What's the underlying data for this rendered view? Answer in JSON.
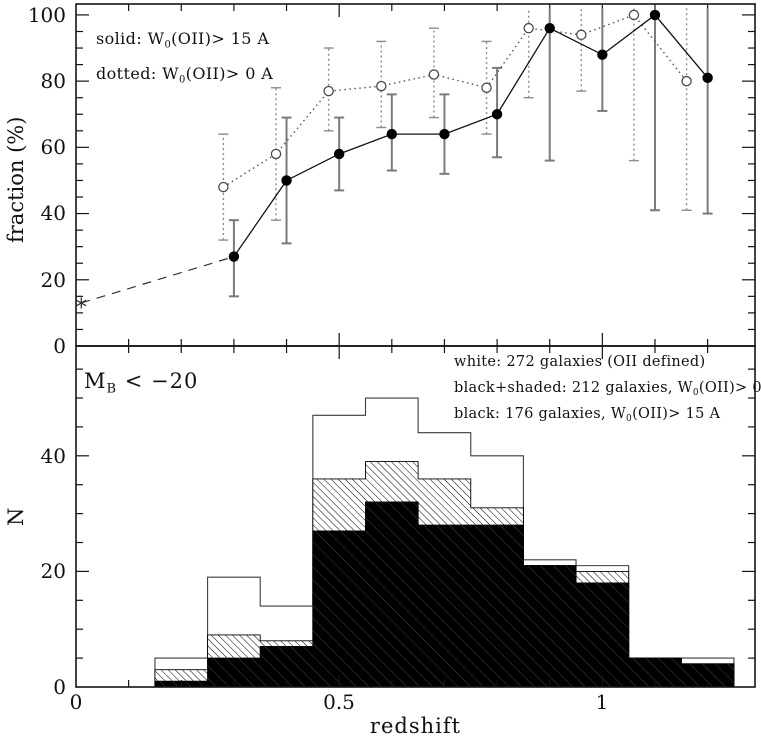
{
  "figure": {
    "background": "#ffffff",
    "ink": "#111111",
    "errorbar_solid_color": "#7a7a7a",
    "errorbar_dotted_color": "#8c8c8c",
    "dotted_line_color": "#555555"
  },
  "chart_data": [
    {
      "type": "line",
      "panel": "top",
      "title": "",
      "ylabel": "fraction (%)",
      "xlabel": "",
      "xlim": [
        0,
        1.29
      ],
      "ylim": [
        0,
        103.3
      ],
      "xticks": [
        0.5,
        1
      ],
      "xminor_step": 0.1,
      "yticks": [
        20,
        40,
        60,
        80,
        100
      ],
      "yminor_step": 5,
      "ytick_labels": [
        "100",
        "80",
        "60",
        "40",
        "20",
        "0"
      ],
      "grid": false,
      "legend_position": "top-left",
      "legend_solid": {
        "pre": "solid: W",
        "sub": "0",
        "post": "(OII)> 15 A"
      },
      "legend_dotted": {
        "pre": "dotted: W",
        "sub": "0",
        "post": "(OII)> 0 A"
      },
      "series": [
        {
          "name": "solid: W0(OII)> 15 A",
          "style": "solid",
          "marker": "filled-circle",
          "x": [
            0.3,
            0.4,
            0.5,
            0.6,
            0.7,
            0.8,
            0.9,
            1.0,
            1.1,
            1.2
          ],
          "y": [
            27,
            50,
            58,
            64,
            64,
            70,
            96,
            88,
            100,
            81
          ],
          "err_lo": [
            15,
            31,
            47,
            53,
            52,
            57,
            56,
            71,
            41,
            40
          ],
          "err_hi": [
            38,
            69,
            69,
            76,
            76,
            84,
            102,
            102,
            102,
            102
          ]
        },
        {
          "name": "dotted: W0(OII)> 0 A",
          "style": "dotted",
          "marker": "open-circle",
          "x": [
            0.28,
            0.38,
            0.48,
            0.58,
            0.68,
            0.78,
            0.86,
            0.96,
            1.06,
            1.16
          ],
          "y": [
            48,
            58,
            77,
            78.5,
            82,
            78,
            96,
            94,
            100,
            80
          ],
          "err_lo": [
            32,
            38,
            65,
            66,
            69,
            64,
            75,
            77,
            56,
            41
          ],
          "err_hi": [
            64,
            78,
            90,
            92,
            96,
            92,
            102,
            102,
            102,
            102
          ]
        },
        {
          "name": "local reference point",
          "style": "dashed-connector",
          "marker": "asterisk",
          "x": [
            0.01
          ],
          "y": [
            13
          ],
          "connect_to": [
            0.3,
            27
          ]
        }
      ]
    },
    {
      "type": "bar",
      "subtype": "stepped-histogram",
      "panel": "bottom",
      "title": "",
      "ylabel": "N",
      "xlabel": "redshift",
      "xlim": [
        0,
        1.29
      ],
      "ylim": [
        0,
        59
      ],
      "xticks": [
        0.5,
        1
      ],
      "xtick_labels": [
        "0",
        "0.5",
        "1"
      ],
      "xminor_step": 0.1,
      "yticks": [
        20,
        40
      ],
      "yminor_step": 5,
      "ytick_labels": [
        "40",
        "20",
        "0"
      ],
      "annotation": {
        "pre": "M",
        "sub": "B",
        "post": " < −20"
      },
      "legend": [
        {
          "pre": "white: 272 galaxies (OII defined)",
          "sub": "",
          "post": ""
        },
        {
          "pre": "black+shaded: 212 galaxies, W",
          "sub": "0",
          "post": "(OII)> 0"
        },
        {
          "pre": "black: 176 galaxies, W",
          "sub": "0",
          "post": "(OII)> 15 A"
        }
      ],
      "bin_edges": [
        0.15,
        0.25,
        0.35,
        0.45,
        0.55,
        0.65,
        0.75,
        0.85,
        0.95,
        1.05,
        1.15,
        1.25
      ],
      "series": [
        {
          "name": "white: 272 galaxies (OII defined)",
          "fill": "white",
          "total": 272,
          "values": [
            5,
            19,
            14,
            47,
            50,
            44,
            40,
            22,
            21,
            5,
            5
          ]
        },
        {
          "name": "black+shaded: 212 galaxies, W0(OII)> 0",
          "fill": "hatched",
          "total": 212,
          "values": [
            3,
            9,
            8,
            36,
            39,
            36,
            31,
            21,
            20,
            5,
            4
          ]
        },
        {
          "name": "black: 176 galaxies, W0(OII)> 15 A",
          "fill": "black",
          "total": 176,
          "values": [
            1,
            5,
            7,
            27,
            32,
            28,
            28,
            21,
            18,
            5,
            4
          ]
        }
      ]
    }
  ]
}
